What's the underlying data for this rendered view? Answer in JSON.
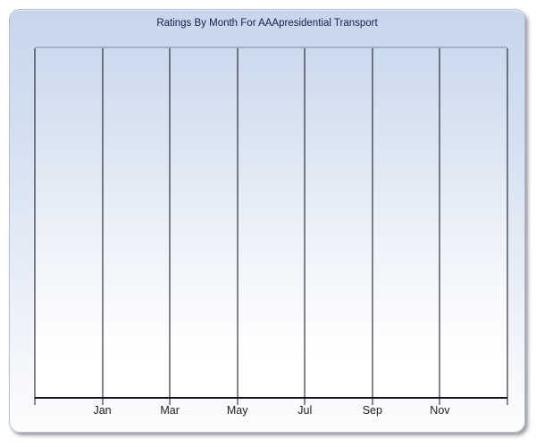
{
  "chart_data": {
    "type": "line",
    "title": "Ratings By Month For AAApresidential Transport",
    "xlabel": "",
    "ylabel": "",
    "x_tick_labels": [
      "Jan",
      "Mar",
      "May",
      "Jul",
      "Sep",
      "Nov"
    ],
    "x_grid_divisions": 7,
    "y_tick_labels": [],
    "series": [],
    "plot_empty": true,
    "grid": "vertical-only",
    "legend": "none"
  },
  "colors": {
    "panel_gradient_top": "#c7d6ec",
    "panel_gradient_bottom": "#fdfdfe",
    "panel_border": "#b3bfd6",
    "plot_gradient_top": "#ccdaee",
    "plot_gradient_bottom": "#ffffff",
    "plot_top_border": "#a6b0c2",
    "gridline": "#0b0b18",
    "axis_line": "#15151f",
    "title_text": "#1b1b4b",
    "tick_label_text": "#1d1d1d"
  }
}
